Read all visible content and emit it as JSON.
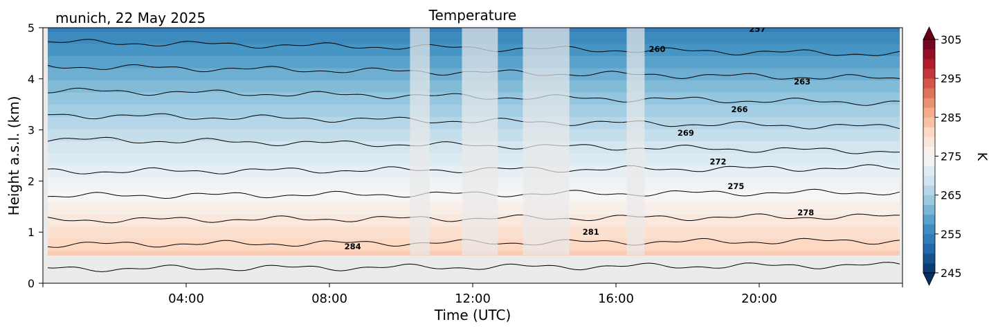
{
  "header": {
    "location_date": "munich, 22 May 2025"
  },
  "chart_data": {
    "type": "heatmap",
    "title": "Temperature",
    "xlabel": "Time (UTC)",
    "ylabel": "Height a.s.l. (km)",
    "xlim_hours": [
      0,
      24
    ],
    "ylim_km": [
      0,
      5
    ],
    "x_ticks": [
      {
        "hour": 4,
        "label": "04:00"
      },
      {
        "hour": 8,
        "label": "08:00"
      },
      {
        "hour": 12,
        "label": "12:00"
      },
      {
        "hour": 16,
        "label": "16:00"
      },
      {
        "hour": 20,
        "label": "20:00"
      }
    ],
    "y_ticks": [
      {
        "km": 0,
        "label": "0"
      },
      {
        "km": 1,
        "label": "1"
      },
      {
        "km": 2,
        "label": "2"
      },
      {
        "km": 3,
        "label": "3"
      },
      {
        "km": 4,
        "label": "4"
      },
      {
        "km": 5,
        "label": "5"
      }
    ],
    "lowest_data_height_km": 0.55,
    "surface_temperature_K": 286,
    "lapse_rate_K_per_km": 6.3,
    "missing_data_intervals_hours": [
      [
        10.25,
        10.8
      ],
      [
        11.7,
        12.7
      ],
      [
        13.4,
        14.7
      ],
      [
        16.3,
        16.8
      ]
    ],
    "colorbar": {
      "label": "K",
      "range_K": [
        245,
        305
      ],
      "ticks": [
        "305",
        "295",
        "285",
        "275",
        "265",
        "255",
        "245"
      ],
      "colors": [
        "#053061",
        "#2166ac",
        "#4393c3",
        "#92c5de",
        "#d1e5f0",
        "#f7f7f7",
        "#fddbc7",
        "#f4a582",
        "#d6604d",
        "#b2182b",
        "#67001f"
      ],
      "extend": "both"
    },
    "contours": [
      {
        "level_K": 284,
        "label": "284",
        "label_hour": 8.65,
        "label_km": 0.72
      },
      {
        "level_K": 281,
        "label": "281",
        "label_hour": 15.3,
        "label_km": 1.0
      },
      {
        "level_K": 278,
        "label": "278",
        "label_hour": 21.3,
        "label_km": 1.38
      },
      {
        "level_K": 275,
        "label": "275",
        "label_hour": 19.35,
        "label_km": 1.9
      },
      {
        "level_K": 272,
        "label": "272",
        "label_hour": 18.85,
        "label_km": 2.38
      },
      {
        "level_K": 269,
        "label": "269",
        "label_hour": 17.95,
        "label_km": 2.94
      },
      {
        "level_K": 266,
        "label": "266",
        "label_hour": 19.45,
        "label_km": 3.4
      },
      {
        "level_K": 263,
        "label": "263",
        "label_hour": 21.2,
        "label_km": 3.94
      },
      {
        "level_K": 260,
        "label": "260",
        "label_hour": 17.15,
        "label_km": 4.58
      },
      {
        "level_K": 257,
        "label": "257",
        "label_hour": 19.95,
        "label_km": 4.97
      }
    ]
  }
}
